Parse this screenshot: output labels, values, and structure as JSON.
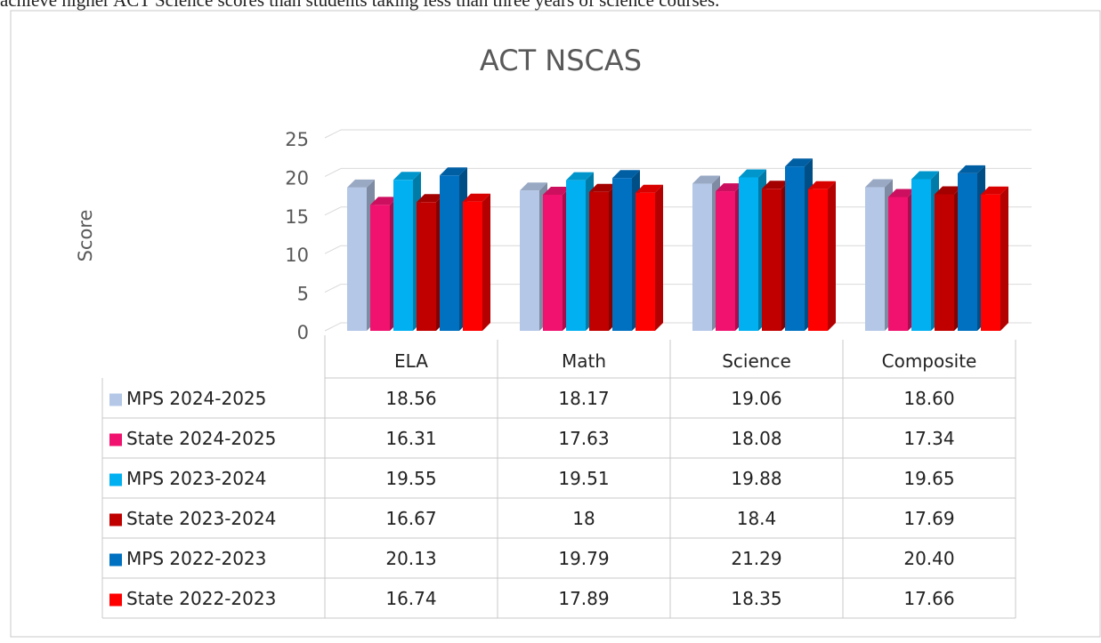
{
  "caption": "achieve higher ACT Science scores than students taking less than three years of science courses.",
  "chart_data": {
    "type": "bar3d",
    "title": "ACT NSCAS",
    "ylabel": "Score",
    "categories": [
      "ELA",
      "Math",
      "Science",
      "Composite"
    ],
    "series": [
      {
        "name": "MPS 2024-2025",
        "color": "#b4c7e7",
        "values": [
          18.56,
          18.17,
          19.06,
          18.6
        ],
        "value_labels": [
          "18.56",
          "18.17",
          "19.06",
          "18.60"
        ]
      },
      {
        "name": "State 2024-2025",
        "color": "#f0126e",
        "values": [
          16.31,
          17.63,
          18.08,
          17.34
        ]
      },
      {
        "name": "MPS 2023-2024",
        "color": "#00b0f0",
        "values": [
          19.55,
          19.51,
          19.88,
          19.65
        ]
      },
      {
        "name": "State 2023-2024",
        "color": "#c00000",
        "values": [
          16.67,
          18,
          18.4,
          17.69
        ]
      },
      {
        "name": "MPS 2022-2023",
        "color": "#0070c0",
        "values": [
          20.13,
          19.79,
          21.29,
          20.4
        ],
        "value_labels": [
          "20.13",
          "19.79",
          "21.29",
          "20.40"
        ]
      },
      {
        "name": "State 2022-2023",
        "color": "#ff0000",
        "values": [
          16.74,
          17.89,
          18.35,
          17.66
        ]
      }
    ],
    "ylim": [
      0,
      25
    ],
    "yticks": [
      0,
      5,
      10,
      15,
      20,
      25
    ],
    "grid": true,
    "data_table": true
  }
}
